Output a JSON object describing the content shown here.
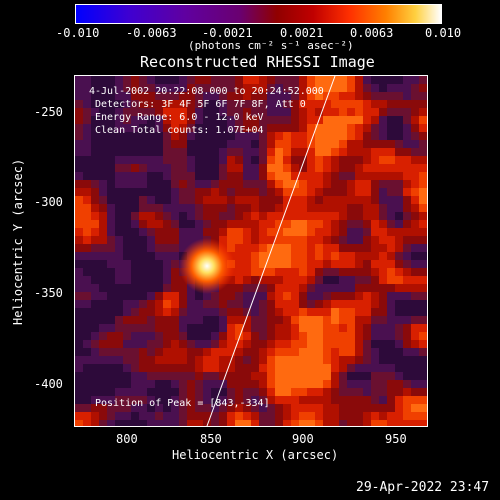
{
  "colorbar": {
    "tick_labels": [
      "-0.010",
      "-0.0063",
      "-0.0021",
      "0.0021",
      "0.0063",
      "0.010"
    ],
    "units": "(photons cm⁻² s⁻¹ asec⁻²)"
  },
  "title": "Reconstructed RHESSI Image",
  "annotations": {
    "time": "4-Jul-2002 20:22:08.000 to 20:24:52.000",
    "detectors": "Detectors: 3F 4F 5F 6F 7F 8F, Att 0",
    "energy": "Energy Range: 6.0 - 12.0 keV",
    "clean": "Clean    Total counts: 1.07E+04",
    "peak": "Position of Peak = [843,-334]"
  },
  "axes": {
    "xlabel": "Heliocentric X (arcsec)",
    "ylabel": "Heliocentric Y (arcsec)",
    "xticks": [
      "800",
      "850",
      "900",
      "950"
    ],
    "yticks": [
      "-250",
      "-300",
      "-350",
      "-400"
    ]
  },
  "footer": {
    "timestamp": "29-Apr-2022 23:47"
  },
  "colors": {
    "background": "#000000",
    "limb_line": "#ffffff"
  }
}
